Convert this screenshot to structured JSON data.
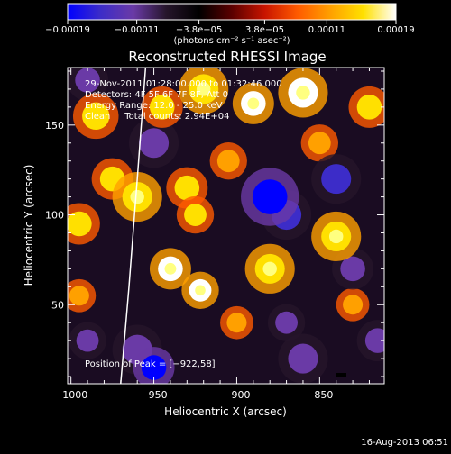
{
  "chart_data": {
    "type": "heatmap",
    "title": "Reconstructed RHESSI Image",
    "xlabel": "Heliocentric X (arcsec)",
    "ylabel": "Heliocentric Y (arcsec)",
    "xlim": [
      -1002,
      -811
    ],
    "ylim": [
      6,
      182
    ],
    "xticks": [
      -1000,
      -950,
      -900,
      -850
    ],
    "xtick_labels": [
      "−1000",
      "−950",
      "−900",
      "−850"
    ],
    "yticks": [
      50,
      100,
      150
    ],
    "ytick_labels": [
      "50",
      "100",
      "150"
    ],
    "colorbar": {
      "min": -0.00019,
      "max": 0.00019,
      "ticks": [
        -0.00019,
        -0.00011,
        -3.8e-05,
        3.8e-05,
        0.00011,
        0.00019
      ],
      "tick_labels": [
        "−0.00019",
        "−0.00011",
        "−3.8e−05",
        "3.8e−05",
        "0.00011",
        "0.00019"
      ],
      "unit_label": "(photons cm⁻² s⁻¹ asec⁻²)",
      "colormap": [
        "#0000ff",
        "#3c2cc8",
        "#6a3aa6",
        "#26152b",
        "#000000",
        "#5a0000",
        "#c81400",
        "#ff5a00",
        "#ffa000",
        "#ffe000",
        "#ffffff"
      ]
    },
    "annotations": [
      "29-Nov-2011 01:28:00.000 to 01:32:46.000",
      "Detectors: 4F 5F 6F 7F 8F, Att 0",
      "Energy Range: 12.0 - 25.0 keV",
      "Clean     Total counts: 2.94E+04",
      "Position of Peak = [−922,58]"
    ],
    "peak": {
      "x": -922,
      "y": 58
    },
    "limb_curve": {
      "x": [
        -970,
        -965,
        -960,
        -955
      ],
      "y": [
        6,
        60,
        120,
        182
      ]
    },
    "blobs": [
      {
        "x": -860,
        "y": 168,
        "value": 1.0,
        "r": 12
      },
      {
        "x": -890,
        "y": 162,
        "value": 0.9,
        "r": 10
      },
      {
        "x": -920,
        "y": 170,
        "value": 0.85,
        "r": 12
      },
      {
        "x": -945,
        "y": 160,
        "value": 0.8,
        "r": 10
      },
      {
        "x": -985,
        "y": 155,
        "value": 0.75,
        "r": 11
      },
      {
        "x": -975,
        "y": 120,
        "value": 0.8,
        "r": 10
      },
      {
        "x": -995,
        "y": 95,
        "value": 0.7,
        "r": 10
      },
      {
        "x": -960,
        "y": 110,
        "value": 0.85,
        "r": 12
      },
      {
        "x": -930,
        "y": 115,
        "value": 0.7,
        "r": 10
      },
      {
        "x": -925,
        "y": 100,
        "value": 0.75,
        "r": 9
      },
      {
        "x": -940,
        "y": 70,
        "value": 0.9,
        "r": 10
      },
      {
        "x": -922,
        "y": 58,
        "value": 1.0,
        "r": 9
      },
      {
        "x": -880,
        "y": 70,
        "value": 0.85,
        "r": 12
      },
      {
        "x": -840,
        "y": 88,
        "value": 0.85,
        "r": 12
      },
      {
        "x": -820,
        "y": 160,
        "value": 0.7,
        "r": 10
      },
      {
        "x": -905,
        "y": 130,
        "value": 0.6,
        "r": 9
      },
      {
        "x": -850,
        "y": 140,
        "value": 0.65,
        "r": 9
      },
      {
        "x": -995,
        "y": 55,
        "value": 0.6,
        "r": 8
      },
      {
        "x": -900,
        "y": 40,
        "value": 0.5,
        "r": 8
      },
      {
        "x": -830,
        "y": 50,
        "value": 0.55,
        "r": 8
      },
      {
        "x": -950,
        "y": 140,
        "value": -0.6,
        "r": 12
      },
      {
        "x": -880,
        "y": 110,
        "value": -0.9,
        "r": 14
      },
      {
        "x": -870,
        "y": 100,
        "value": -0.8,
        "r": 12
      },
      {
        "x": -840,
        "y": 120,
        "value": -0.75,
        "r": 12
      },
      {
        "x": -990,
        "y": 175,
        "value": -0.6,
        "r": 10
      },
      {
        "x": -960,
        "y": 25,
        "value": -0.7,
        "r": 12
      },
      {
        "x": -950,
        "y": 15,
        "value": -0.9,
        "r": 10
      },
      {
        "x": -860,
        "y": 20,
        "value": -0.6,
        "r": 12
      },
      {
        "x": -815,
        "y": 30,
        "value": -0.7,
        "r": 10
      },
      {
        "x": -870,
        "y": 40,
        "value": -0.55,
        "r": 9
      },
      {
        "x": -830,
        "y": 70,
        "value": -0.65,
        "r": 10
      },
      {
        "x": -990,
        "y": 30,
        "value": -0.55,
        "r": 9
      }
    ]
  },
  "footer": {
    "date_stamp": "16-Aug-2013 06:51"
  }
}
